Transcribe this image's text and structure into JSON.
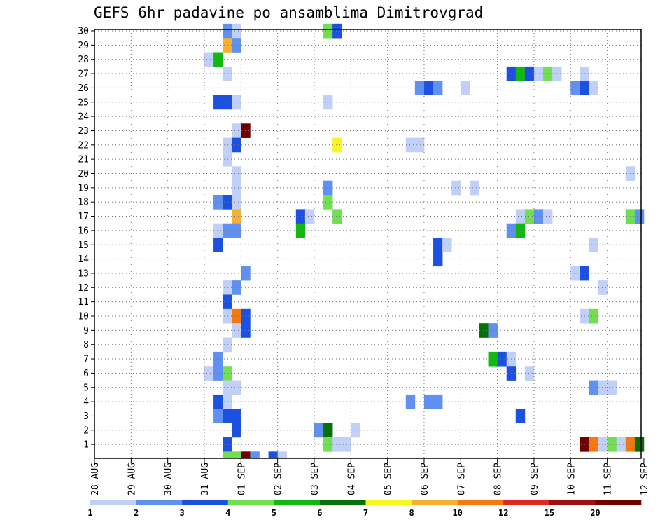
{
  "chart_data": {
    "type": "heatmap",
    "title": "GEFS 6hr padavine po ansamblima Dimitrovgrad",
    "x_tick_labels": [
      "28 AUG",
      "29 AUG",
      "30 AUG",
      "31 AUG",
      "01 SEP",
      "02 SEP",
      "03 SEP",
      "04 SEP",
      "05 SEP",
      "06 SEP",
      "07 SEP",
      "08 SEP",
      "09 SEP",
      "10 SEP",
      "11 SEP",
      "12 SEP"
    ],
    "y_range": [
      1,
      30
    ],
    "y_ticks": [
      1,
      2,
      3,
      4,
      5,
      6,
      7,
      8,
      9,
      10,
      11,
      12,
      13,
      14,
      15,
      16,
      17,
      18,
      19,
      20,
      21,
      22,
      23,
      24,
      25,
      26,
      27,
      28,
      29,
      30
    ],
    "x_range": [
      0,
      60
    ],
    "step_hours": 6,
    "grid": true,
    "colorbar": {
      "labels": [
        "1",
        "2",
        "3",
        "4",
        "5",
        "6",
        "7",
        "8",
        "10",
        "12",
        "15",
        "20"
      ],
      "colors": [
        "#c0d0f8",
        "#6090f0",
        "#1c50e0",
        "#70e050",
        "#10b810",
        "#087008",
        "#f8f820",
        "#f8b030",
        "#f87810",
        "#e02820",
        "#a01010",
        "#700000"
      ]
    },
    "cells": [
      {
        "member": 30,
        "step": 15,
        "level": 2
      },
      {
        "member": 30,
        "step": 16,
        "level": 1
      },
      {
        "member": 30,
        "step": 26,
        "level": 4
      },
      {
        "member": 30,
        "step": 27,
        "level": 3
      },
      {
        "member": 29,
        "step": 15,
        "level": 8
      },
      {
        "member": 29,
        "step": 16,
        "level": 2
      },
      {
        "member": 28,
        "step": 13,
        "level": 1
      },
      {
        "member": 28,
        "step": 14,
        "level": 5
      },
      {
        "member": 27,
        "step": 15,
        "level": 1
      },
      {
        "member": 27,
        "step": 46,
        "level": 3
      },
      {
        "member": 27,
        "step": 47,
        "level": 5
      },
      {
        "member": 27,
        "step": 48,
        "level": 3
      },
      {
        "member": 27,
        "step": 49,
        "level": 1
      },
      {
        "member": 27,
        "step": 50,
        "level": 4
      },
      {
        "member": 27,
        "step": 51,
        "level": 1
      },
      {
        "member": 27,
        "step": 54,
        "level": 1
      },
      {
        "member": 26,
        "step": 36,
        "level": 2
      },
      {
        "member": 26,
        "step": 37,
        "level": 3
      },
      {
        "member": 26,
        "step": 38,
        "level": 2
      },
      {
        "member": 26,
        "step": 41,
        "level": 1
      },
      {
        "member": 26,
        "step": 53,
        "level": 2
      },
      {
        "member": 26,
        "step": 54,
        "level": 3
      },
      {
        "member": 26,
        "step": 55,
        "level": 1
      },
      {
        "member": 25,
        "step": 14,
        "level": 3
      },
      {
        "member": 25,
        "step": 15,
        "level": 3
      },
      {
        "member": 25,
        "step": 16,
        "level": 1
      },
      {
        "member": 25,
        "step": 26,
        "level": 1
      },
      {
        "member": 23,
        "step": 16,
        "level": 1
      },
      {
        "member": 23,
        "step": 17,
        "level": 12
      },
      {
        "member": 22,
        "step": 15,
        "level": 1
      },
      {
        "member": 22,
        "step": 16,
        "level": 3
      },
      {
        "member": 22,
        "step": 27,
        "level": 7
      },
      {
        "member": 22,
        "step": 35,
        "level": 1
      },
      {
        "member": 22,
        "step": 36,
        "level": 1
      },
      {
        "member": 21,
        "step": 15,
        "level": 1
      },
      {
        "member": 20,
        "step": 16,
        "level": 1
      },
      {
        "member": 20,
        "step": 59,
        "level": 1
      },
      {
        "member": 19,
        "step": 16,
        "level": 1
      },
      {
        "member": 19,
        "step": 26,
        "level": 2
      },
      {
        "member": 19,
        "step": 40,
        "level": 1
      },
      {
        "member": 19,
        "step": 42,
        "level": 1
      },
      {
        "member": 18,
        "step": 14,
        "level": 2
      },
      {
        "member": 18,
        "step": 15,
        "level": 3
      },
      {
        "member": 18,
        "step": 16,
        "level": 1
      },
      {
        "member": 18,
        "step": 26,
        "level": 4
      },
      {
        "member": 17,
        "step": 16,
        "level": 8
      },
      {
        "member": 17,
        "step": 23,
        "level": 3
      },
      {
        "member": 17,
        "step": 24,
        "level": 1
      },
      {
        "member": 17,
        "step": 27,
        "level": 4
      },
      {
        "member": 17,
        "step": 47,
        "level": 1
      },
      {
        "member": 17,
        "step": 48,
        "level": 4
      },
      {
        "member": 17,
        "step": 49,
        "level": 2
      },
      {
        "member": 17,
        "step": 50,
        "level": 1
      },
      {
        "member": 17,
        "step": 59,
        "level": 4
      },
      {
        "member": 17,
        "step": 60,
        "level": 2
      },
      {
        "member": 16,
        "step": 14,
        "level": 1
      },
      {
        "member": 16,
        "step": 15,
        "level": 2
      },
      {
        "member": 16,
        "step": 16,
        "level": 2
      },
      {
        "member": 16,
        "step": 23,
        "level": 5
      },
      {
        "member": 16,
        "step": 46,
        "level": 2
      },
      {
        "member": 16,
        "step": 47,
        "level": 5
      },
      {
        "member": 15,
        "step": 14,
        "level": 3
      },
      {
        "member": 15,
        "step": 38,
        "level": 3
      },
      {
        "member": 15,
        "step": 39,
        "level": 1
      },
      {
        "member": 15,
        "step": 55,
        "level": 1
      },
      {
        "member": 14,
        "step": 38,
        "level": 3
      },
      {
        "member": 13,
        "step": 17,
        "level": 2
      },
      {
        "member": 13,
        "step": 53,
        "level": 1
      },
      {
        "member": 13,
        "step": 54,
        "level": 3
      },
      {
        "member": 12,
        "step": 15,
        "level": 1
      },
      {
        "member": 12,
        "step": 16,
        "level": 2
      },
      {
        "member": 12,
        "step": 56,
        "level": 1
      },
      {
        "member": 11,
        "step": 15,
        "level": 3
      },
      {
        "member": 10,
        "step": 15,
        "level": 1
      },
      {
        "member": 10,
        "step": 16,
        "level": 9
      },
      {
        "member": 10,
        "step": 17,
        "level": 3
      },
      {
        "member": 10,
        "step": 54,
        "level": 1
      },
      {
        "member": 10,
        "step": 55,
        "level": 4
      },
      {
        "member": 9,
        "step": 16,
        "level": 1
      },
      {
        "member": 9,
        "step": 17,
        "level": 3
      },
      {
        "member": 9,
        "step": 43,
        "level": 6
      },
      {
        "member": 9,
        "step": 44,
        "level": 2
      },
      {
        "member": 8,
        "step": 15,
        "level": 1
      },
      {
        "member": 7,
        "step": 14,
        "level": 2
      },
      {
        "member": 7,
        "step": 44,
        "level": 5
      },
      {
        "member": 7,
        "step": 45,
        "level": 3
      },
      {
        "member": 7,
        "step": 46,
        "level": 1
      },
      {
        "member": 6,
        "step": 13,
        "level": 1
      },
      {
        "member": 6,
        "step": 14,
        "level": 2
      },
      {
        "member": 6,
        "step": 15,
        "level": 4
      },
      {
        "member": 6,
        "step": 46,
        "level": 3
      },
      {
        "member": 6,
        "step": 48,
        "level": 1
      },
      {
        "member": 5,
        "step": 15,
        "level": 1
      },
      {
        "member": 5,
        "step": 16,
        "level": 1
      },
      {
        "member": 5,
        "step": 55,
        "level": 2
      },
      {
        "member": 5,
        "step": 56,
        "level": 1
      },
      {
        "member": 5,
        "step": 57,
        "level": 1
      },
      {
        "member": 4,
        "step": 14,
        "level": 3
      },
      {
        "member": 4,
        "step": 15,
        "level": 1
      },
      {
        "member": 4,
        "step": 35,
        "level": 2
      },
      {
        "member": 4,
        "step": 37,
        "level": 2
      },
      {
        "member": 4,
        "step": 38,
        "level": 2
      },
      {
        "member": 3,
        "step": 14,
        "level": 2
      },
      {
        "member": 3,
        "step": 15,
        "level": 3
      },
      {
        "member": 3,
        "step": 16,
        "level": 3
      },
      {
        "member": 3,
        "step": 47,
        "level": 3
      },
      {
        "member": 2,
        "step": 16,
        "level": 3
      },
      {
        "member": 2,
        "step": 25,
        "level": 2
      },
      {
        "member": 2,
        "step": 26,
        "level": 6
      },
      {
        "member": 2,
        "step": 29,
        "level": 1
      },
      {
        "member": 1,
        "step": 15,
        "level": 3
      },
      {
        "member": 1,
        "step": 26,
        "level": 4
      },
      {
        "member": 1,
        "step": 27,
        "level": 1
      },
      {
        "member": 1,
        "step": 28,
        "level": 1
      },
      {
        "member": 1,
        "step": 54,
        "level": 12
      },
      {
        "member": 1,
        "step": 55,
        "level": 9
      },
      {
        "member": 1,
        "step": 56,
        "level": 1
      },
      {
        "member": 1,
        "step": 57,
        "level": 4
      },
      {
        "member": 1,
        "step": 58,
        "level": 1
      },
      {
        "member": 1,
        "step": 59,
        "level": 9
      },
      {
        "member": 1,
        "step": 60,
        "level": 6
      },
      {
        "member": 0,
        "step": 15,
        "level": 4
      },
      {
        "member": 0,
        "step": 16,
        "level": 4
      },
      {
        "member": 0,
        "step": 17,
        "level": 12
      },
      {
        "member": 0,
        "step": 18,
        "level": 2
      },
      {
        "member": 0,
        "step": 20,
        "level": 3
      },
      {
        "member": 0,
        "step": 21,
        "level": 1
      }
    ]
  }
}
